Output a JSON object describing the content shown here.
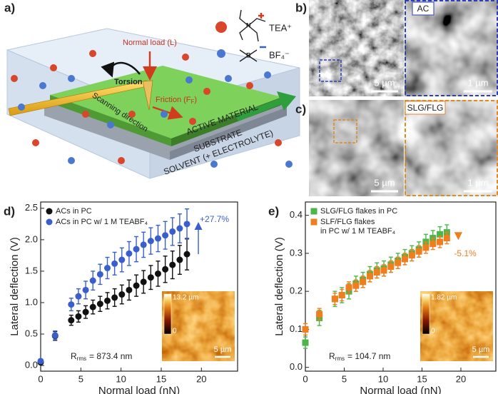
{
  "panels": {
    "a": {
      "label": "a)",
      "tea": "TEA⁺",
      "bf4": "BF₄⁻",
      "normal_load": "Normal load (L)",
      "torsion": "Torsion",
      "scanning": "Scanning direction",
      "friction": "Friction (F",
      "friction_sub": "F",
      "friction_end": ")",
      "active": "ACTIVE MATERIAL",
      "substrate": "SUBSTRATE",
      "solvent": "SOLVENT (+ ELECTROLYTE)"
    },
    "b": {
      "label": "b)",
      "tag": "AC",
      "scale_main": "5 µm",
      "scale_zoom": "1 µm"
    },
    "c": {
      "label": "c)",
      "tag": "SLG/FLG",
      "scale_main": "5 µm",
      "scale_zoom": "1 µm"
    }
  },
  "chart_data": [
    {
      "type": "scatter",
      "panel_label": "d)",
      "xlabel": "Normal load (nN)",
      "ylabel": "Lateral deflection (V)",
      "xlim": [
        0,
        24.5
      ],
      "ylim": [
        -0.09,
        2.6
      ],
      "xticks": [
        0,
        5,
        10,
        15,
        20
      ],
      "yticks": [
        {
          "value": 0,
          "label": "0.0"
        },
        0.5,
        {
          "value": 1,
          "label": "1.0"
        },
        1.5,
        {
          "value": 2,
          "label": "2.0"
        },
        2.5
      ],
      "marker": "circle",
      "legend": "upper left",
      "x": [
        0,
        1.8,
        3.8,
        4.7,
        5.6,
        6.5,
        7.4,
        8.3,
        9.2,
        10.1,
        11.0,
        11.9,
        12.8,
        13.7,
        14.6,
        15.5,
        16.4,
        17.3,
        18.2
      ],
      "series": [
        {
          "name": "ACs in PC",
          "color": "#111111",
          "values": [
            0.05,
            0.47,
            0.72,
            0.78,
            0.85,
            0.93,
            0.98,
            1.03,
            1.08,
            1.13,
            1.2,
            1.27,
            1.33,
            1.4,
            1.46,
            1.53,
            1.6,
            1.68,
            1.77
          ],
          "errors": [
            0.03,
            0.07,
            0.08,
            0.09,
            0.1,
            0.11,
            0.12,
            0.13,
            0.14,
            0.15,
            0.16,
            0.17,
            0.18,
            0.19,
            0.2,
            0.21,
            0.22,
            0.23,
            0.25
          ]
        },
        {
          "name": "ACs in PC w/ 1 M TEABF₄",
          "color": "#3a5fcd",
          "values": [
            0.07,
            0.48,
            0.97,
            1.1,
            1.2,
            1.35,
            1.45,
            1.55,
            1.62,
            1.68,
            1.78,
            1.85,
            1.92,
            1.98,
            2.02,
            2.07,
            2.13,
            2.18,
            2.25
          ],
          "errors": [
            0.03,
            0.07,
            0.1,
            0.12,
            0.14,
            0.15,
            0.16,
            0.17,
            0.18,
            0.19,
            0.19,
            0.2,
            0.2,
            0.21,
            0.21,
            0.22,
            0.22,
            0.23,
            0.24
          ]
        }
      ],
      "annotation": "+27.7%",
      "inset": {
        "colorbar_max": "13.2 µm",
        "colorbar_min": "0",
        "scale_bar": "5 µm",
        "rrms_symbol": "R",
        "rrms_sub": "rms",
        "rrms_text": "= 873.4 nm"
      }
    },
    {
      "type": "scatter",
      "panel_label": "e)",
      "xlabel": "Normal load (nN)",
      "ylabel": "Lateral deflection (V)",
      "xlim": [
        0,
        24.5
      ],
      "ylim": [
        -0.01,
        0.435
      ],
      "xticks": [
        0,
        5,
        10,
        15,
        20
      ],
      "yticks": [
        {
          "value": 0,
          "label": "0.0"
        },
        0.1,
        0.2,
        0.3,
        0.4
      ],
      "marker": "square",
      "legend": "upper left",
      "x": [
        0,
        1.8,
        3.8,
        4.7,
        5.6,
        6.5,
        7.4,
        8.3,
        9.2,
        10.1,
        11.0,
        11.9,
        12.8,
        13.7,
        14.6,
        15.5,
        16.4,
        17.3,
        18.2
      ],
      "series": [
        {
          "name": "SLG/FLG flakes in PC",
          "color": "#4cb748",
          "values": [
            0.065,
            0.13,
            0.18,
            0.19,
            0.2,
            0.22,
            0.23,
            0.245,
            0.255,
            0.26,
            0.27,
            0.28,
            0.29,
            0.3,
            0.31,
            0.33,
            0.34,
            0.35,
            0.355
          ],
          "errors": [
            0.015,
            0.02,
            0.02,
            0.02,
            0.02,
            0.02,
            0.02,
            0.02,
            0.02,
            0.02,
            0.02,
            0.02,
            0.02,
            0.02,
            0.02,
            0.02,
            0.02,
            0.02,
            0.02
          ]
        },
        {
          "name": "SLF/FLG flakes\nin PC w/ 1 M TEABF₄",
          "color": "#f07d1e",
          "values": [
            0.1,
            0.14,
            0.18,
            0.19,
            0.21,
            0.215,
            0.225,
            0.24,
            0.25,
            0.255,
            0.265,
            0.275,
            0.285,
            0.295,
            0.305,
            0.315,
            0.325,
            0.33,
            0.34
          ],
          "errors": [
            0.015,
            0.015,
            0.015,
            0.015,
            0.015,
            0.015,
            0.015,
            0.015,
            0.015,
            0.015,
            0.015,
            0.015,
            0.015,
            0.015,
            0.015,
            0.015,
            0.015,
            0.015,
            0.015
          ]
        }
      ],
      "annotation": "-5.1%",
      "inset": {
        "colorbar_max": "1.82 µm",
        "colorbar_min": "0",
        "scale_bar": "5 µm",
        "rrms_symbol": "R",
        "rrms_sub": "rms",
        "rrms_text": "= 104.7 nm"
      }
    }
  ]
}
